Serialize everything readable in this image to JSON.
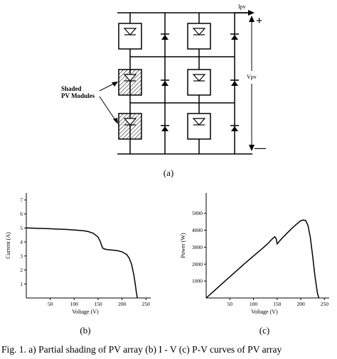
{
  "figure": {
    "circuit": {
      "current_label": "Ipv",
      "voltage_label": "Vpv",
      "plus_sign": "+",
      "minus_sign": "—",
      "shaded_label_line1": "Shaded",
      "shaded_label_line2": "PV Modules",
      "sublabel": "(a)"
    },
    "sublabel_b": "(b)",
    "sublabel_c": "(c)",
    "caption": "Fig. 1. a) Partial shading of PV array (b) I - V (c) P-V curves of PV array"
  },
  "chart_data": [
    {
      "type": "line",
      "xlabel": "Voltage (V)",
      "ylabel": "Current (A)",
      "xlim": [
        0,
        260
      ],
      "ylim": [
        0,
        7.5
      ],
      "xticks": [
        50,
        100,
        150,
        200,
        250
      ],
      "yticks": [
        1,
        2,
        3,
        4,
        5,
        6,
        7
      ],
      "x": [
        0,
        20,
        40,
        60,
        80,
        100,
        120,
        130,
        140,
        150,
        155,
        158,
        160,
        163,
        170,
        180,
        190,
        200,
        210,
        215,
        220,
        225,
        228,
        230,
        232
      ],
      "y": [
        5.0,
        4.98,
        4.96,
        4.93,
        4.9,
        4.86,
        4.8,
        4.74,
        4.62,
        4.35,
        4.0,
        3.7,
        3.55,
        3.5,
        3.45,
        3.42,
        3.38,
        3.3,
        3.1,
        2.85,
        2.4,
        1.6,
        0.9,
        0.4,
        0.0
      ]
    },
    {
      "type": "line",
      "xlabel": "Voltage (V)",
      "ylabel": "Power (W)",
      "xlim": [
        0,
        260
      ],
      "ylim": [
        0,
        6200
      ],
      "xticks": [
        50,
        100,
        150,
        200,
        250
      ],
      "yticks": [
        1000,
        2000,
        3000,
        4000,
        5000
      ],
      "x": [
        0,
        20,
        40,
        60,
        80,
        100,
        120,
        130,
        140,
        145,
        148,
        150,
        160,
        170,
        180,
        190,
        200,
        205,
        210,
        215,
        220,
        225,
        230,
        235,
        238
      ],
      "y": [
        0,
        500,
        1000,
        1500,
        2000,
        2480,
        2950,
        3200,
        3500,
        3620,
        3500,
        3200,
        3520,
        3800,
        4080,
        4330,
        4560,
        4600,
        4580,
        4300,
        3600,
        2500,
        1300,
        300,
        0
      ]
    }
  ]
}
